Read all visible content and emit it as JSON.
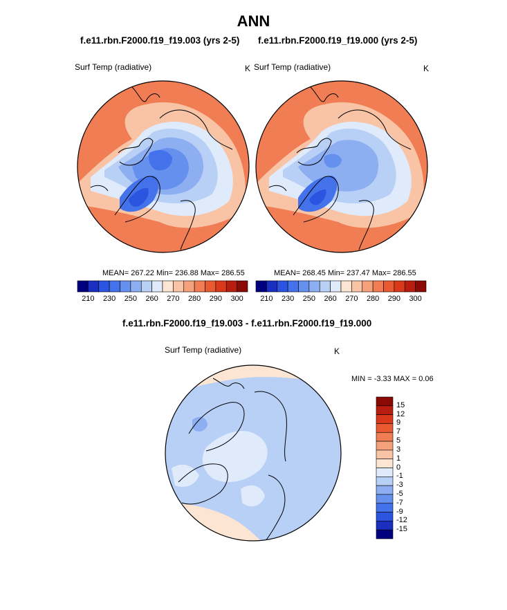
{
  "title": "ANN",
  "units": "K",
  "panels": [
    {
      "title": "f.e11.rbn.F2000.f19_f19.003 (yrs 2-5)",
      "variable": "Surf Temp (radiative)",
      "units": "K",
      "stats": "MEAN= 267.22  Min= 236.88  Max= 286.55",
      "mean": 267.22,
      "min": 236.88,
      "max": 286.55
    },
    {
      "title": "f.e11.rbn.F2000.f19_f19.000 (yrs 2-5)",
      "variable": "Surf Temp (radiative)",
      "units": "K",
      "stats": "MEAN= 268.45  Min= 237.47  Max= 286.55",
      "mean": 268.45,
      "min": 237.47,
      "max": 286.55
    }
  ],
  "diff": {
    "title": "f.e11.rbn.F2000.f19_f19.003 - f.e11.rbn.F2000.f19_f19.000",
    "variable": "Surf Temp (radiative)",
    "units": "K",
    "stats": "MIN =  -3.33 MAX =   0.06",
    "min": -3.33,
    "max": 0.06
  },
  "colorbar_temp": {
    "colors": [
      "#00007f",
      "#1a2fbf",
      "#2b55e0",
      "#4472ea",
      "#6690ee",
      "#8eaef2",
      "#b8cff6",
      "#dfeafb",
      "#fde5d3",
      "#f9c4a6",
      "#f5a17c",
      "#f07d54",
      "#ea5a31",
      "#d9381a",
      "#b81e0f",
      "#8a0a06"
    ],
    "labels": [
      "210",
      "230",
      "250",
      "260",
      "270",
      "280",
      "290",
      "300"
    ]
  },
  "colorbar_diff": {
    "colors": [
      "#8a0a06",
      "#b81e0f",
      "#d9381a",
      "#ea5a31",
      "#f07d54",
      "#f5a17c",
      "#f9c4a6",
      "#fde5d3",
      "#dfeafb",
      "#b8cff6",
      "#8eaef2",
      "#6690ee",
      "#4472ea",
      "#2b55e0",
      "#1a2fbf",
      "#00007f"
    ],
    "labels": [
      "15",
      "12",
      "9",
      "7",
      "5",
      "3",
      "1",
      "0",
      "-1",
      "-3",
      "-5",
      "-7",
      "-9",
      "-12",
      "-15"
    ]
  }
}
